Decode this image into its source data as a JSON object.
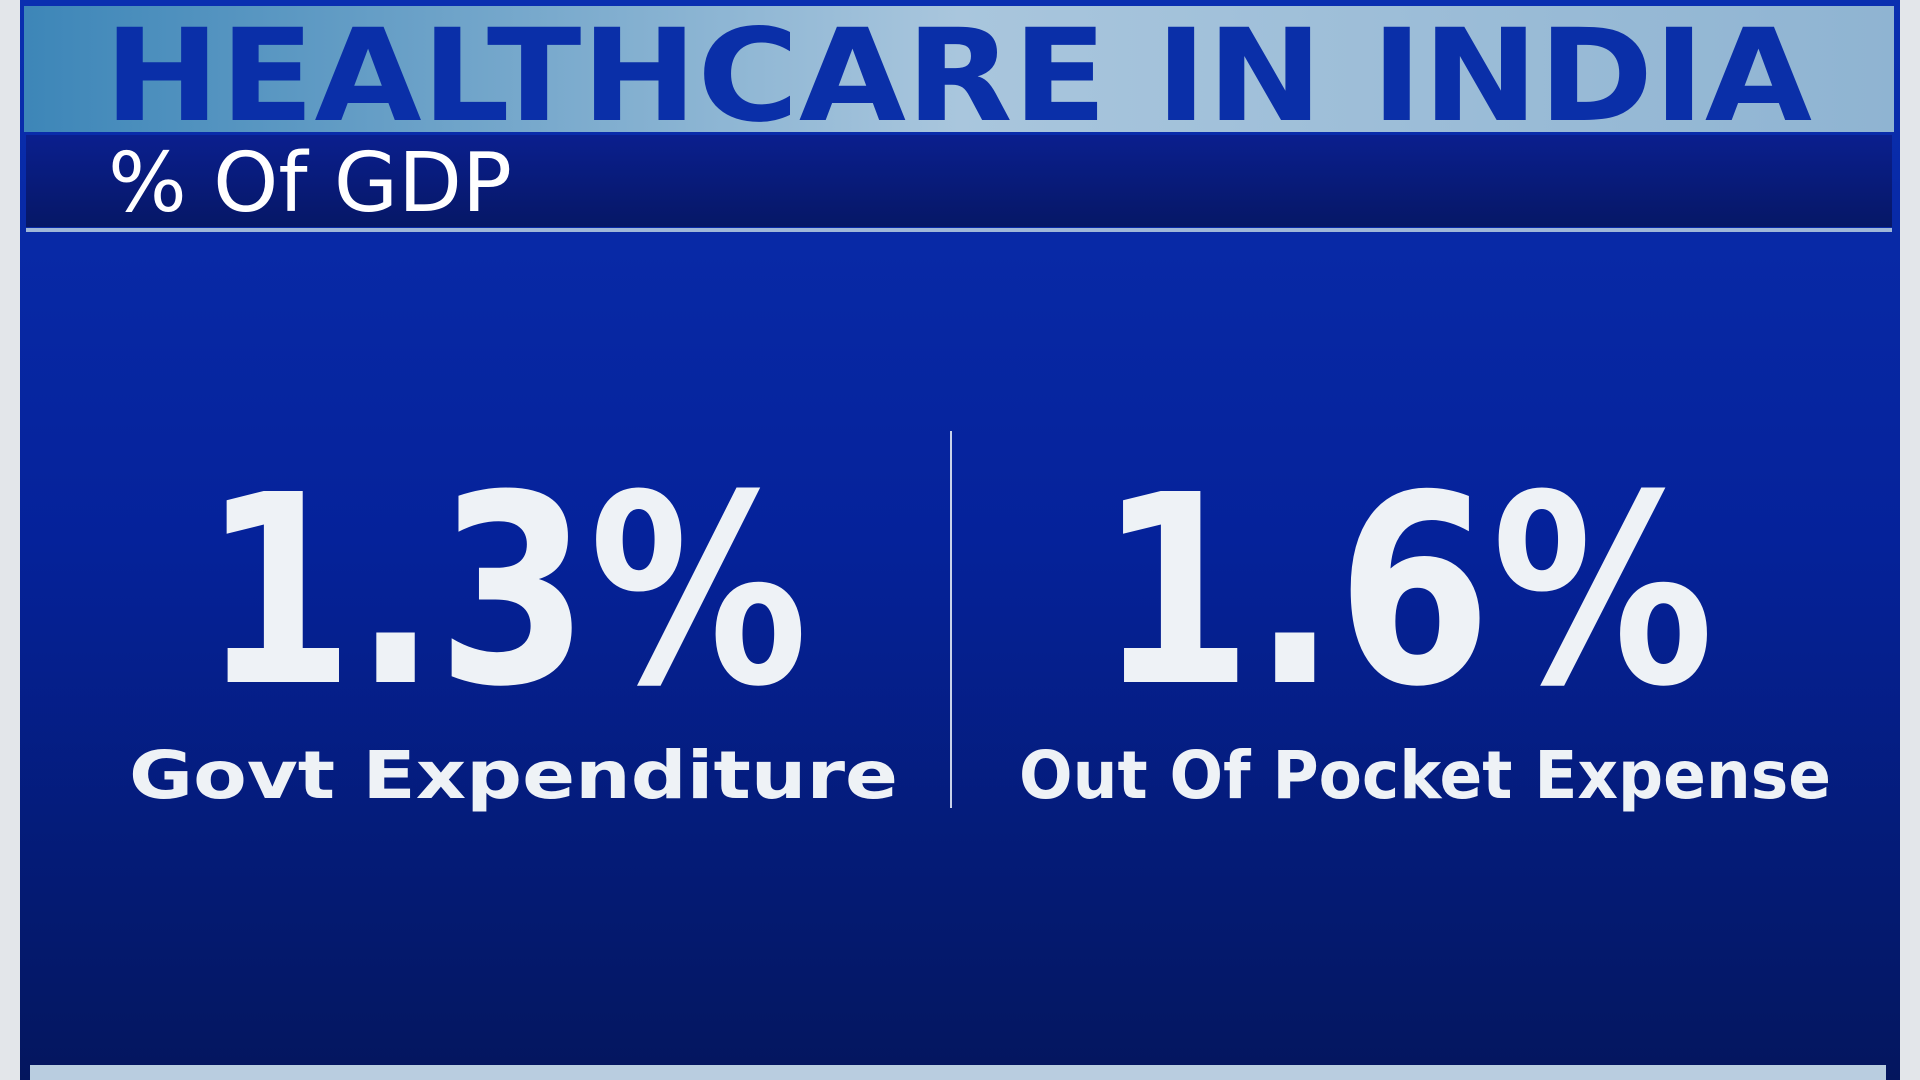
{
  "header": {
    "title": "HEALTHCARE IN INDIA",
    "subtitle": "% Of GDP"
  },
  "stats": [
    {
      "value": "1.3%",
      "label": "Govt Expenditure"
    },
    {
      "value": "1.6%",
      "label": "Out Of Pocket Expense"
    }
  ]
}
